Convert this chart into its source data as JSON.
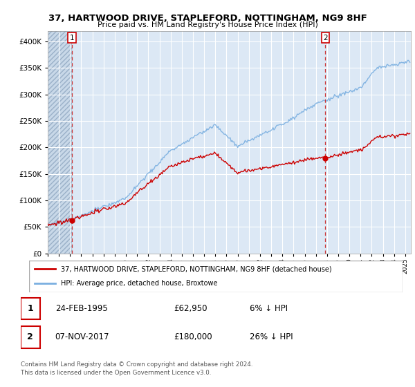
{
  "title1": "37, HARTWOOD DRIVE, STAPLEFORD, NOTTINGHAM, NG9 8HF",
  "title2": "Price paid vs. HM Land Registry's House Price Index (HPI)",
  "ylim": [
    0,
    420000
  ],
  "xlim_start": 1993.0,
  "xlim_end": 2025.5,
  "sale1_date": 1995.15,
  "sale1_price": 62950,
  "sale2_date": 2017.85,
  "sale2_price": 180000,
  "legend_property": "37, HARTWOOD DRIVE, STAPLEFORD, NOTTINGHAM, NG9 8HF (detached house)",
  "legend_hpi": "HPI: Average price, detached house, Broxtowe",
  "table_row1": [
    "1",
    "24-FEB-1995",
    "£62,950",
    "6% ↓ HPI"
  ],
  "table_row2": [
    "2",
    "07-NOV-2017",
    "£180,000",
    "26% ↓ HPI"
  ],
  "footnote1": "Contains HM Land Registry data © Crown copyright and database right 2024.",
  "footnote2": "This data is licensed under the Open Government Licence v3.0.",
  "property_line_color": "#cc0000",
  "hpi_line_color": "#7aafe0",
  "chart_bg": "#dce8f5",
  "hatch_bg": "#c8d8e8",
  "grid_color": "#ffffff",
  "dashed_line_color": "#cc3333",
  "label_box_color": "#cc0000",
  "seed": 17
}
